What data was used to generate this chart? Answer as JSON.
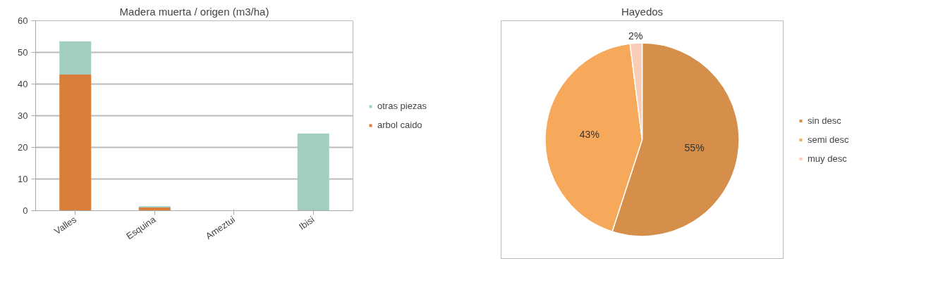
{
  "chart_data": [
    {
      "type": "bar",
      "title": "Madera muerta / origen (m3/ha)",
      "categories": [
        "Valles",
        "Esquina",
        "Ameztui",
        "Ibisi"
      ],
      "stacked": true,
      "series": [
        {
          "name": "arbol caido",
          "color": "#d97d3a",
          "values": [
            43,
            1.0,
            0,
            0
          ]
        },
        {
          "name": "otras piezas",
          "color": "#a2cebf",
          "values": [
            10.5,
            0.4,
            0,
            24.4
          ]
        }
      ],
      "ylim": [
        0,
        60
      ],
      "yticks": [
        0,
        10,
        20,
        30,
        40,
        50,
        60
      ],
      "grid": "y",
      "legend": "right"
    },
    {
      "type": "pie",
      "title": "Hayedos",
      "categories": [
        "sin desc",
        "semi desc",
        "muy desc"
      ],
      "values": [
        55,
        43,
        2
      ],
      "colors": [
        "#d68f4a",
        "#f6a95a",
        "#f9cdb8"
      ],
      "value_labels": [
        "55%",
        "43%",
        "2%"
      ],
      "legend": "right"
    }
  ]
}
